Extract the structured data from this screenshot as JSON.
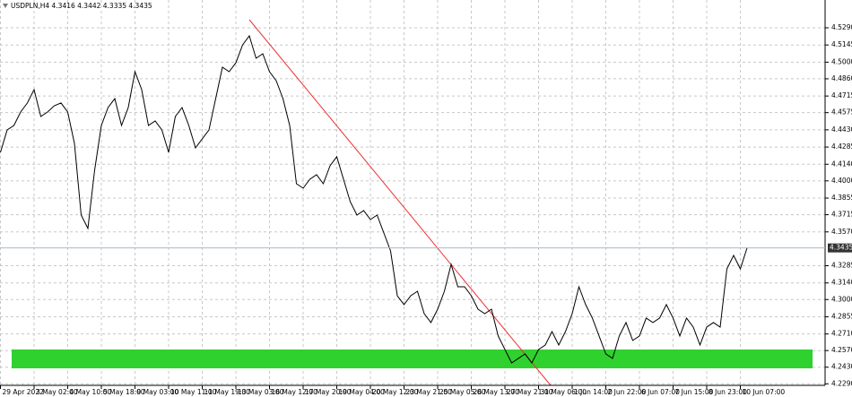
{
  "chart_data": {
    "type": "line",
    "title": "USDPLN,H4  4.3416 4.3442 4.3335 4.3435",
    "color": "#000000",
    "current_price": 4.3435,
    "categories": [
      "29 Apr 2022",
      null,
      null,
      null,
      null,
      "3 May 02:00",
      null,
      null,
      null,
      null,
      "4 May 10:00",
      null,
      null,
      null,
      null,
      "5 May 18:00",
      null,
      null,
      null,
      null,
      "9 May 03:00",
      null,
      null,
      null,
      null,
      "10 May 11:00",
      null,
      null,
      null,
      null,
      "11 May 19:00",
      null,
      null,
      null,
      null,
      "13 May 03:00",
      null,
      null,
      null,
      null,
      "16 May 12:00",
      null,
      null,
      null,
      null,
      "17 May 20:00",
      null,
      null,
      null,
      null,
      "19 May 04:00",
      null,
      null,
      null,
      null,
      "20 May 12:00",
      null,
      null,
      null,
      null,
      "23 May 21:00",
      null,
      null,
      null,
      null,
      "25 May 05:00",
      null,
      null,
      null,
      null,
      "26 May 13:00",
      null,
      null,
      null,
      null,
      "27 May 21:00",
      null,
      null,
      null,
      null,
      "31 May 06:00",
      null,
      null,
      null,
      null,
      "1 Jun 14:00",
      null,
      null,
      null,
      null,
      "2 Jun 22:00",
      null,
      null,
      null,
      null,
      "6 Jun 07:00",
      null,
      null,
      null,
      null,
      "7 Jun 15:00",
      null,
      null,
      null,
      null,
      "8 Jun 23:00",
      null,
      null,
      null,
      null,
      "10 Jun 07:00",
      null
    ],
    "values": [
      4.424,
      4.4429,
      4.4467,
      4.458,
      4.4656,
      4.4769,
      4.4542,
      4.458,
      4.4633,
      4.4656,
      4.458,
      4.4316,
      4.3712,
      4.3599,
      4.4089,
      4.4467,
      4.4618,
      4.4693,
      4.4467,
      4.4618,
      4.492,
      4.4769,
      4.4467,
      4.4505,
      4.4429,
      4.424,
      4.4542,
      4.4618,
      4.4467,
      4.4278,
      4.4354,
      4.4429,
      4.4693,
      4.4958,
      4.492,
      4.4995,
      4.5146,
      4.5222,
      4.5033,
      4.5071,
      4.492,
      4.4844,
      4.4693,
      4.4467,
      4.3976,
      4.3938,
      4.4014,
      4.4052,
      4.3976,
      4.4127,
      4.4203,
      4.4014,
      4.3825,
      4.3712,
      4.375,
      4.3674,
      4.3712,
      4.3561,
      4.341,
      4.3032,
      4.2957,
      4.3032,
      4.307,
      4.2881,
      4.2806,
      4.2919,
      4.307,
      4.3297,
      4.3108,
      4.3108,
      4.3032,
      4.2919,
      4.2881,
      4.2919,
      4.2693,
      4.2579,
      4.2466,
      4.2504,
      4.2542,
      4.2466,
      4.2579,
      4.2617,
      4.273,
      4.2617,
      4.273,
      4.2881,
      4.3108,
      4.2957,
      4.2844,
      4.2693,
      4.2542,
      4.2504,
      4.2693,
      4.2806,
      4.2655,
      4.2693,
      4.2844,
      4.2806,
      4.2844,
      4.2957,
      4.2844,
      4.2693,
      4.2844,
      4.2768,
      4.2617,
      4.2768,
      4.2806,
      4.2768,
      4.3259,
      4.3372,
      4.3259,
      4.3435
    ],
    "ylim": [
      4.2277,
      4.5524
    ],
    "yticks": [
      {
        "value": 4.529,
        "label": "4.5290"
      },
      4.5145,
      {
        "value": 4.5,
        "label": "4.5000"
      },
      {
        "value": 4.486,
        "label": "4.4860"
      },
      4.4715,
      4.4575,
      {
        "value": 4.443,
        "label": "4.4430"
      },
      4.4285,
      {
        "value": 4.414,
        "label": "4.4140"
      },
      {
        "value": 4.4,
        "label": "4.4000"
      },
      4.3855,
      4.3715,
      {
        "value": 4.357,
        "label": "4.3570"
      },
      4.3285,
      {
        "value": 4.314,
        "label": "4.3140"
      },
      {
        "value": 4.3,
        "label": "4.3000"
      },
      4.2855,
      {
        "value": 4.271,
        "label": "4.2710"
      },
      {
        "value": 4.257,
        "label": "4.2570"
      },
      {
        "value": 4.243,
        "label": "4.2430"
      },
      {
        "value": 4.229,
        "label": "4.2290"
      }
    ],
    "grid": true
  }
}
